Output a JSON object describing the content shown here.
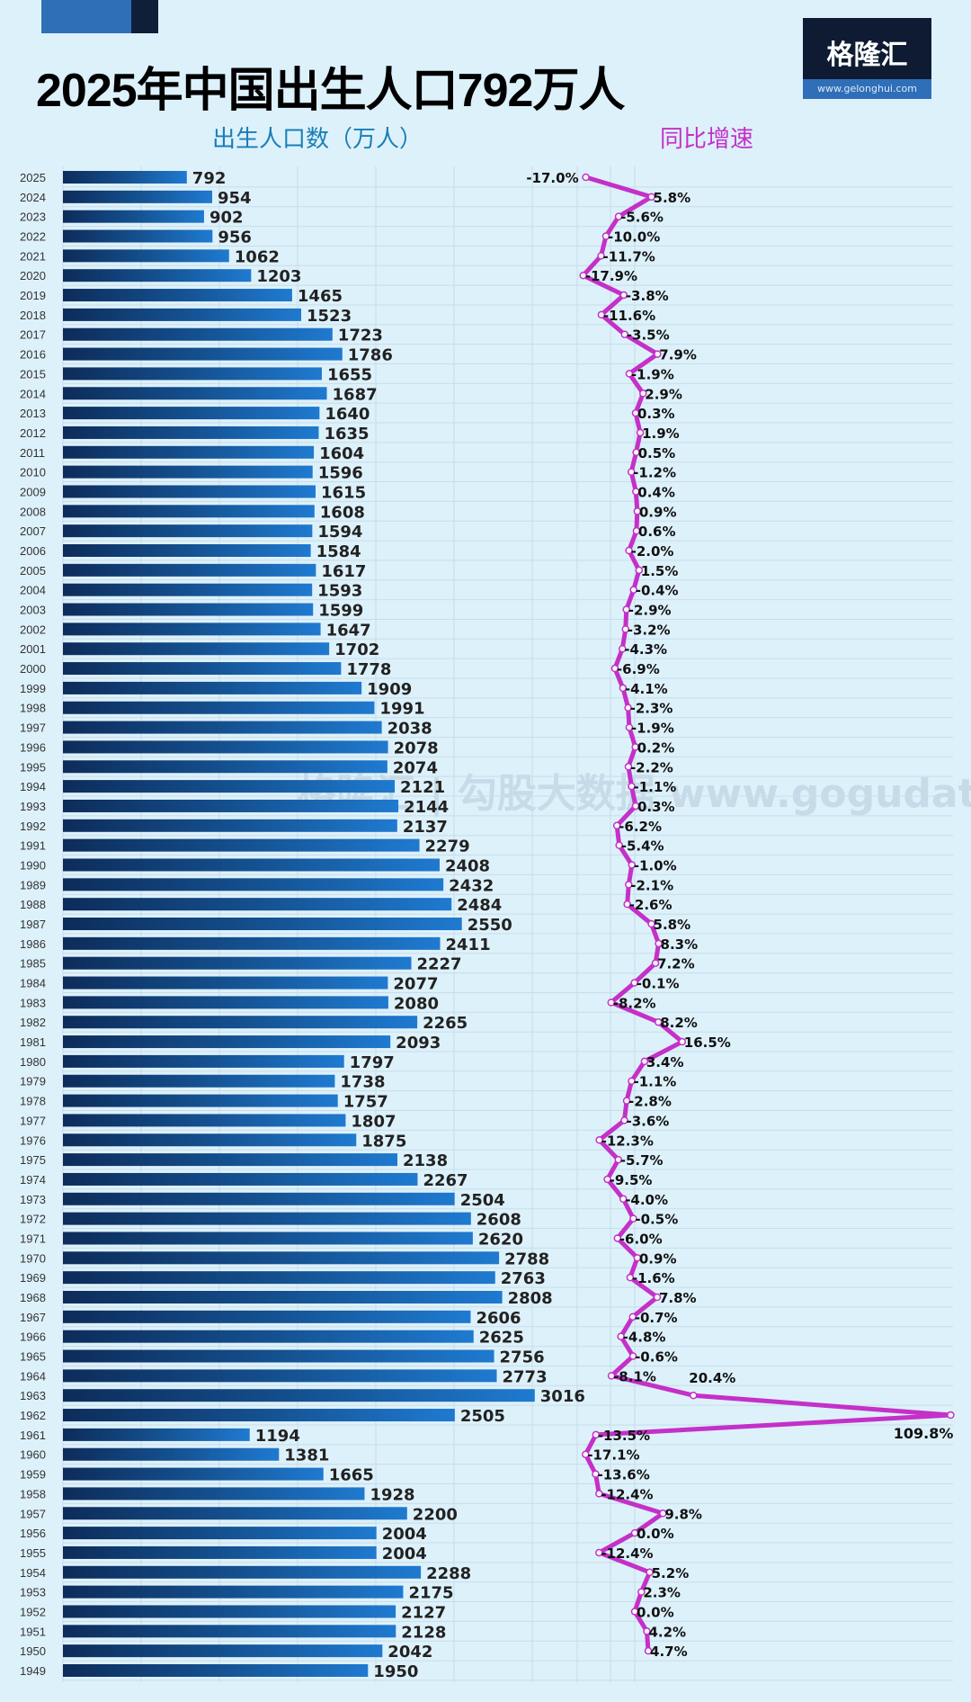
{
  "header": {
    "title": "2025年中国出生人口792万人",
    "logo_text": "格隆汇",
    "logo_url": "www.gelonghui.com"
  },
  "watermark": "格隆汇 | 勾股大数据 www.gogudata.com",
  "colors": {
    "background": "#ddf1fb",
    "bar": "#1a6fc4",
    "line": "#c430c8"
  },
  "chart_data": {
    "type": "bar+line",
    "title": "2025年中国出生人口792万人",
    "orientation": "horizontal",
    "categories": [
      "2025",
      "2024",
      "2023",
      "2022",
      "2021",
      "2020",
      "2019",
      "2018",
      "2017",
      "2016",
      "2015",
      "2014",
      "2013",
      "2012",
      "2011",
      "2010",
      "2009",
      "2008",
      "2007",
      "2006",
      "2005",
      "2004",
      "2003",
      "2002",
      "2001",
      "2000",
      "1999",
      "1998",
      "1997",
      "1996",
      "1995",
      "1994",
      "1993",
      "1992",
      "1991",
      "1990",
      "1989",
      "1988",
      "1987",
      "1986",
      "1985",
      "1984",
      "1983",
      "1982",
      "1981",
      "1980",
      "1979",
      "1978",
      "1977",
      "1976",
      "1975",
      "1974",
      "1973",
      "1972",
      "1971",
      "1970",
      "1969",
      "1968",
      "1967",
      "1966",
      "1965",
      "1964",
      "1963",
      "1962",
      "1961",
      "1960",
      "1959",
      "1958",
      "1957",
      "1956",
      "1955",
      "1954",
      "1953",
      "1952",
      "1951",
      "1950",
      "1949"
    ],
    "series": [
      {
        "name": "出生人口数（万人）",
        "type": "bar",
        "values": [
          792,
          954,
          902,
          956,
          1062,
          1203,
          1465,
          1523,
          1723,
          1786,
          1655,
          1687,
          1640,
          1635,
          1604,
          1596,
          1615,
          1608,
          1594,
          1584,
          1617,
          1593,
          1599,
          1647,
          1702,
          1778,
          1909,
          1991,
          2038,
          2078,
          2074,
          2121,
          2144,
          2137,
          2279,
          2408,
          2432,
          2484,
          2550,
          2411,
          2227,
          2077,
          2080,
          2265,
          2093,
          1797,
          1738,
          1757,
          1807,
          1875,
          2138,
          2267,
          2504,
          2608,
          2620,
          2788,
          2763,
          2808,
          2606,
          2625,
          2756,
          2773,
          3016,
          2505,
          1194,
          1381,
          1665,
          1928,
          2200,
          2004,
          2004,
          2288,
          2175,
          2127,
          2128,
          2042,
          1950
        ]
      },
      {
        "name": "同比增速",
        "type": "line",
        "unit": "%",
        "values": [
          -17.0,
          5.8,
          -5.6,
          -10.0,
          -11.7,
          -17.9,
          -3.8,
          -11.6,
          -3.5,
          7.9,
          -1.9,
          2.9,
          0.3,
          1.9,
          0.5,
          -1.2,
          0.4,
          0.9,
          0.6,
          -2.0,
          1.5,
          -0.4,
          -2.9,
          -3.2,
          -4.3,
          -6.9,
          -4.1,
          -2.3,
          -1.9,
          0.2,
          -2.2,
          -1.1,
          0.3,
          -6.2,
          -5.4,
          -1.0,
          -2.1,
          -2.6,
          5.8,
          8.3,
          7.2,
          -0.1,
          -8.2,
          8.2,
          16.5,
          3.4,
          -1.1,
          -2.8,
          -3.6,
          -12.3,
          -5.7,
          -9.5,
          -4.0,
          -0.5,
          -6.0,
          0.9,
          -1.6,
          7.8,
          -0.7,
          -4.8,
          -0.6,
          -8.1,
          20.4,
          109.8,
          -13.5,
          -17.1,
          -13.6,
          -12.4,
          9.8,
          0.0,
          -12.4,
          5.2,
          2.3,
          0.0,
          4.2,
          4.7,
          null
        ]
      }
    ],
    "grid": true
  }
}
